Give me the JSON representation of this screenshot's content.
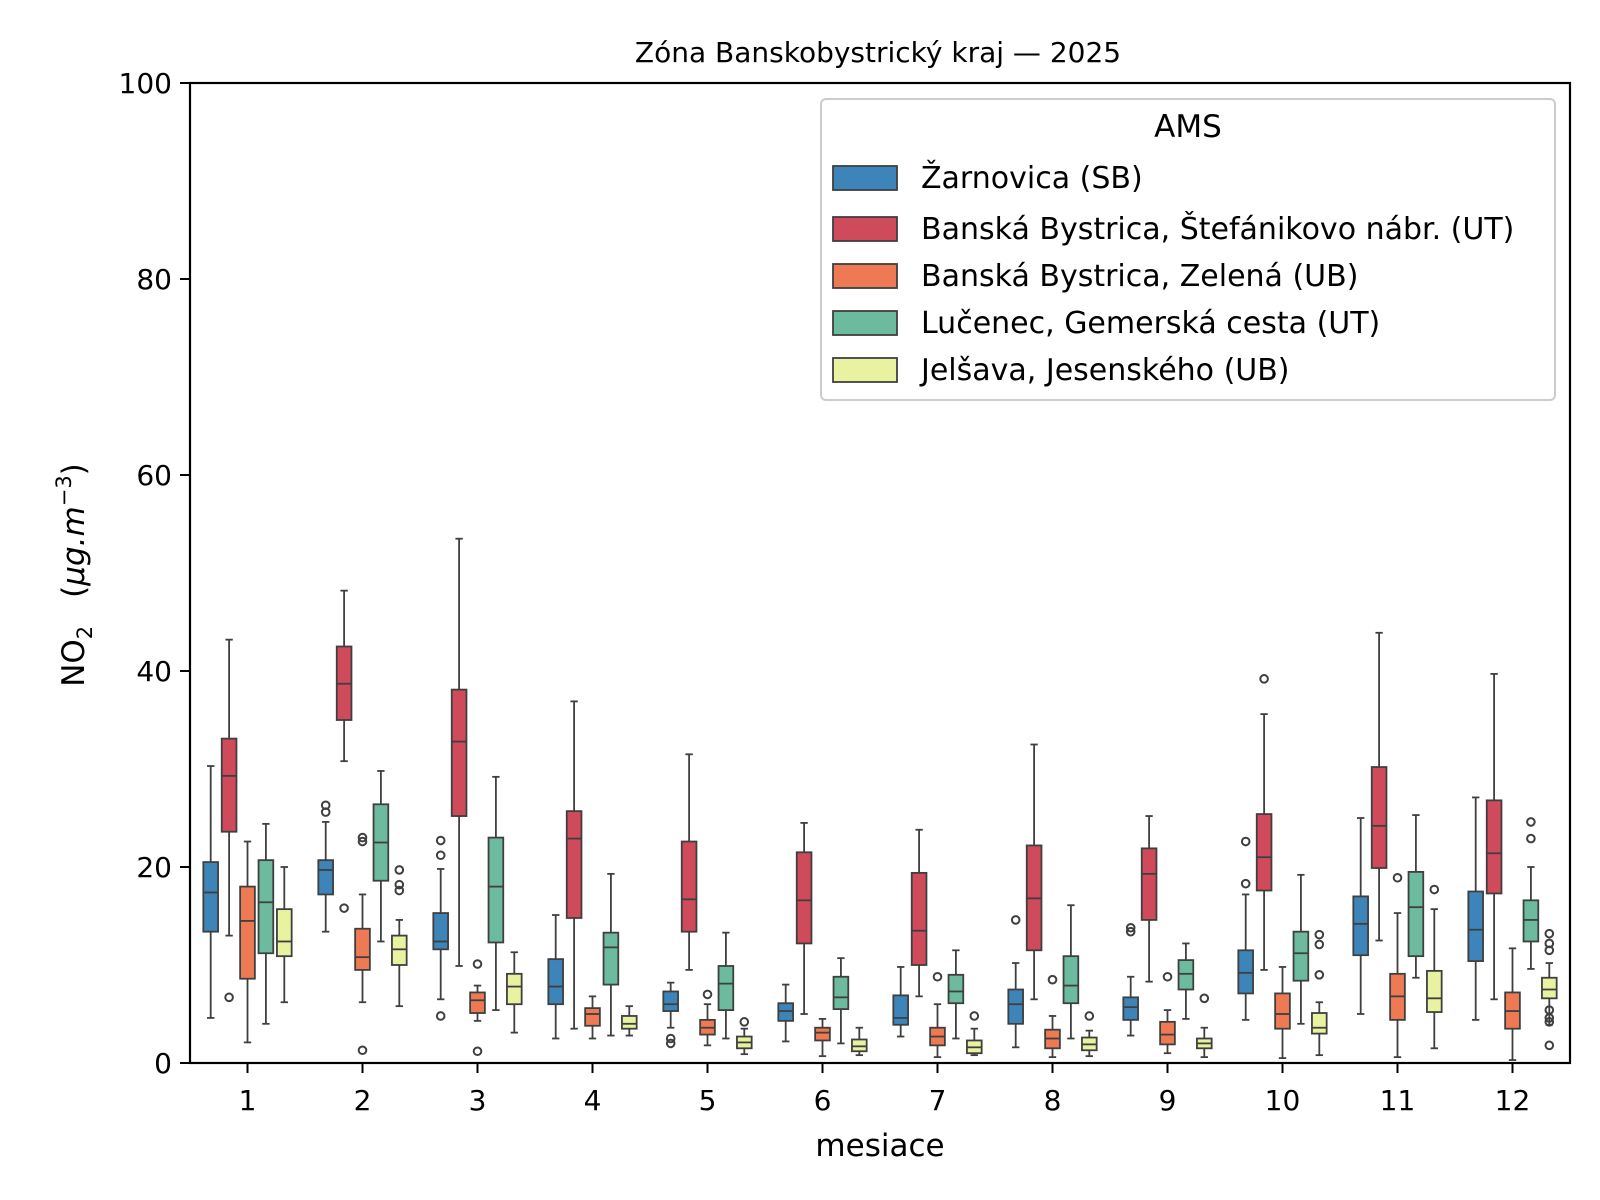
{
  "chart_data": {
    "type": "boxplot",
    "title": "Zóna Banskobystrický kraj —  2025",
    "xlabel": "mesiace",
    "ylabel_main": "NO",
    "ylabel_sub": "2",
    "ylabel_unit_open": "(",
    "ylabel_unit_mu": "μg.m",
    "ylabel_unit_exp": "−3",
    "ylabel_unit_close": ")",
    "ylim": [
      0,
      100
    ],
    "yticks": [
      "0",
      "20",
      "40",
      "60",
      "80",
      "100"
    ],
    "categories": [
      "1",
      "2",
      "3",
      "4",
      "5",
      "6",
      "7",
      "8",
      "9",
      "10",
      "11",
      "12"
    ],
    "legend": {
      "title": "AMS",
      "location": "top-right"
    },
    "series": [
      {
        "name": "Žarnovica (SB)",
        "color": "#3d85b8",
        "boxes": [
          {
            "wl": 4.6,
            "q1": 13.4,
            "med": 17.4,
            "q3": 20.5,
            "wh": 30.3,
            "fliers": []
          },
          {
            "wl": 13.4,
            "q1": 17.2,
            "med": 19.7,
            "q3": 20.7,
            "wh": 24.6,
            "fliers": [
              25.6,
              26.3
            ]
          },
          {
            "wl": 6.5,
            "q1": 11.6,
            "med": 12.4,
            "q3": 15.3,
            "wh": 19.8,
            "fliers": [
              4.8,
              21.2,
              22.7
            ]
          },
          {
            "wl": 2.5,
            "q1": 6.0,
            "med": 7.8,
            "q3": 10.6,
            "wh": 15.1,
            "fliers": []
          },
          {
            "wl": 3.6,
            "q1": 5.3,
            "med": 6.0,
            "q3": 7.3,
            "wh": 8.2,
            "fliers": [
              2.0,
              2.5
            ]
          },
          {
            "wl": 2.2,
            "q1": 4.3,
            "med": 5.3,
            "q3": 6.1,
            "wh": 8.0,
            "fliers": []
          },
          {
            "wl": 2.7,
            "q1": 3.9,
            "med": 4.6,
            "q3": 6.9,
            "wh": 9.8,
            "fliers": []
          },
          {
            "wl": 1.6,
            "q1": 4.0,
            "med": 6.0,
            "q3": 7.5,
            "wh": 10.2,
            "fliers": [
              14.6
            ]
          },
          {
            "wl": 2.8,
            "q1": 4.4,
            "med": 5.7,
            "q3": 6.7,
            "wh": 8.8,
            "fliers": [
              13.4,
              13.8
            ]
          },
          {
            "wl": 4.4,
            "q1": 7.1,
            "med": 9.2,
            "q3": 11.5,
            "wh": 17.2,
            "fliers": [
              18.3,
              22.6
            ]
          },
          {
            "wl": 5.0,
            "q1": 11.0,
            "med": 14.2,
            "q3": 17.0,
            "wh": 25.0,
            "fliers": []
          },
          {
            "wl": 4.4,
            "q1": 10.4,
            "med": 13.6,
            "q3": 17.5,
            "wh": 27.1,
            "fliers": []
          }
        ]
      },
      {
        "name": "Banská Bystrica, Štefánikovo nábr. (UT)",
        "color": "#cf4a5b",
        "boxes": [
          {
            "wl": 13.0,
            "q1": 23.6,
            "med": 29.3,
            "q3": 33.1,
            "wh": 43.2,
            "fliers": [
              6.7
            ]
          },
          {
            "wl": 30.8,
            "q1": 35.0,
            "med": 38.7,
            "q3": 42.5,
            "wh": 48.2,
            "fliers": [
              15.8
            ]
          },
          {
            "wl": 9.9,
            "q1": 25.2,
            "med": 32.8,
            "q3": 38.1,
            "wh": 53.5,
            "fliers": []
          },
          {
            "wl": 3.5,
            "q1": 14.8,
            "med": 22.9,
            "q3": 25.7,
            "wh": 36.9,
            "fliers": []
          },
          {
            "wl": 9.5,
            "q1": 13.4,
            "med": 16.7,
            "q3": 22.6,
            "wh": 31.5,
            "fliers": []
          },
          {
            "wl": 5.0,
            "q1": 12.2,
            "med": 16.6,
            "q3": 21.5,
            "wh": 24.5,
            "fliers": []
          },
          {
            "wl": 6.8,
            "q1": 10.0,
            "med": 13.5,
            "q3": 19.4,
            "wh": 23.8,
            "fliers": []
          },
          {
            "wl": 6.5,
            "q1": 11.5,
            "med": 16.8,
            "q3": 22.2,
            "wh": 32.5,
            "fliers": []
          },
          {
            "wl": 8.3,
            "q1": 14.6,
            "med": 19.3,
            "q3": 21.9,
            "wh": 25.2,
            "fliers": []
          },
          {
            "wl": 9.5,
            "q1": 17.6,
            "med": 21.0,
            "q3": 25.4,
            "wh": 35.6,
            "fliers": [
              39.2
            ]
          },
          {
            "wl": 12.5,
            "q1": 19.9,
            "med": 24.2,
            "q3": 30.2,
            "wh": 43.9,
            "fliers": []
          },
          {
            "wl": 6.5,
            "q1": 17.3,
            "med": 21.4,
            "q3": 26.8,
            "wh": 39.7,
            "fliers": []
          }
        ]
      },
      {
        "name": "Banská Bystrica, Zelená (UB)",
        "color": "#ee7a53",
        "boxes": [
          {
            "wl": 2.1,
            "q1": 8.6,
            "med": 14.5,
            "q3": 18.0,
            "wh": 22.6,
            "fliers": []
          },
          {
            "wl": 6.2,
            "q1": 9.5,
            "med": 10.8,
            "q3": 13.7,
            "wh": 17.2,
            "fliers": [
              1.3,
              22.6,
              23.0
            ]
          },
          {
            "wl": 4.3,
            "q1": 5.1,
            "med": 6.4,
            "q3": 7.2,
            "wh": 7.9,
            "fliers": [
              1.2,
              10.1
            ]
          },
          {
            "wl": 2.5,
            "q1": 3.8,
            "med": 5.0,
            "q3": 5.6,
            "wh": 6.8,
            "fliers": []
          },
          {
            "wl": 1.8,
            "q1": 2.9,
            "med": 3.6,
            "q3": 4.4,
            "wh": 6.0,
            "fliers": [
              7.0
            ]
          },
          {
            "wl": 0.7,
            "q1": 2.3,
            "med": 3.1,
            "q3": 3.6,
            "wh": 4.5,
            "fliers": []
          },
          {
            "wl": 0.6,
            "q1": 1.8,
            "med": 2.7,
            "q3": 3.6,
            "wh": 6.0,
            "fliers": [
              8.8
            ]
          },
          {
            "wl": 0.6,
            "q1": 1.5,
            "med": 2.5,
            "q3": 3.4,
            "wh": 4.8,
            "fliers": [
              8.5
            ]
          },
          {
            "wl": 1.0,
            "q1": 1.9,
            "med": 2.9,
            "q3": 4.2,
            "wh": 5.4,
            "fliers": [
              8.8
            ]
          },
          {
            "wl": 0.5,
            "q1": 3.5,
            "med": 5.0,
            "q3": 7.1,
            "wh": 9.8,
            "fliers": []
          },
          {
            "wl": 0.6,
            "q1": 4.4,
            "med": 6.8,
            "q3": 9.1,
            "wh": 15.3,
            "fliers": [
              18.9
            ]
          },
          {
            "wl": 0.3,
            "q1": 3.5,
            "med": 5.3,
            "q3": 7.2,
            "wh": 11.7,
            "fliers": []
          }
        ]
      },
      {
        "name": "Lučenec, Gemerská cesta (UT)",
        "color": "#6dbb9e",
        "boxes": [
          {
            "wl": 4.0,
            "q1": 11.2,
            "med": 16.4,
            "q3": 20.7,
            "wh": 24.4,
            "fliers": []
          },
          {
            "wl": 12.4,
            "q1": 18.6,
            "med": 22.5,
            "q3": 26.4,
            "wh": 29.8,
            "fliers": []
          },
          {
            "wl": 5.4,
            "q1": 12.3,
            "med": 18.0,
            "q3": 23.0,
            "wh": 29.2,
            "fliers": []
          },
          {
            "wl": 2.8,
            "q1": 8.0,
            "med": 11.8,
            "q3": 13.3,
            "wh": 19.3,
            "fliers": []
          },
          {
            "wl": 2.5,
            "q1": 5.4,
            "med": 8.1,
            "q3": 9.9,
            "wh": 13.3,
            "fliers": []
          },
          {
            "wl": 2.0,
            "q1": 5.5,
            "med": 6.7,
            "q3": 8.8,
            "wh": 10.7,
            "fliers": []
          },
          {
            "wl": 2.5,
            "q1": 6.1,
            "med": 7.3,
            "q3": 9.0,
            "wh": 11.5,
            "fliers": []
          },
          {
            "wl": 2.5,
            "q1": 6.1,
            "med": 7.9,
            "q3": 10.9,
            "wh": 16.1,
            "fliers": []
          },
          {
            "wl": 4.5,
            "q1": 7.5,
            "med": 9.1,
            "q3": 10.5,
            "wh": 12.2,
            "fliers": []
          },
          {
            "wl": 4.0,
            "q1": 8.4,
            "med": 11.2,
            "q3": 13.4,
            "wh": 19.2,
            "fliers": []
          },
          {
            "wl": 8.7,
            "q1": 10.9,
            "med": 15.9,
            "q3": 19.5,
            "wh": 25.3,
            "fliers": []
          },
          {
            "wl": 9.6,
            "q1": 12.4,
            "med": 14.6,
            "q3": 16.6,
            "wh": 20.0,
            "fliers": [
              22.9,
              24.6
            ]
          }
        ]
      },
      {
        "name": "Jelšava, Jesenského (UB)",
        "color": "#e8f2a0",
        "boxes": [
          {
            "wl": 6.2,
            "q1": 10.9,
            "med": 12.4,
            "q3": 15.7,
            "wh": 20.0,
            "fliers": []
          },
          {
            "wl": 5.8,
            "q1": 10.0,
            "med": 11.6,
            "q3": 13.0,
            "wh": 14.6,
            "fliers": [
              17.6,
              18.2,
              19.7
            ]
          },
          {
            "wl": 3.1,
            "q1": 6.0,
            "med": 7.8,
            "q3": 9.1,
            "wh": 11.3,
            "fliers": []
          },
          {
            "wl": 2.8,
            "q1": 3.5,
            "med": 4.0,
            "q3": 4.8,
            "wh": 5.8,
            "fliers": []
          },
          {
            "wl": 0.9,
            "q1": 1.5,
            "med": 2.1,
            "q3": 2.7,
            "wh": 3.5,
            "fliers": [
              4.2
            ]
          },
          {
            "wl": 0.8,
            "q1": 1.2,
            "med": 1.7,
            "q3": 2.4,
            "wh": 3.6,
            "fliers": []
          },
          {
            "wl": 0.8,
            "q1": 1.0,
            "med": 1.6,
            "q3": 2.3,
            "wh": 3.5,
            "fliers": [
              4.8
            ]
          },
          {
            "wl": 0.7,
            "q1": 1.3,
            "med": 1.9,
            "q3": 2.6,
            "wh": 3.3,
            "fliers": [
              4.8
            ]
          },
          {
            "wl": 0.6,
            "q1": 1.5,
            "med": 2.0,
            "q3": 2.5,
            "wh": 3.6,
            "fliers": [
              6.6
            ]
          },
          {
            "wl": 0.8,
            "q1": 3.0,
            "med": 3.6,
            "q3": 5.1,
            "wh": 6.2,
            "fliers": [
              9.0,
              12.1,
              13.1
            ]
          },
          {
            "wl": 1.5,
            "q1": 5.2,
            "med": 6.6,
            "q3": 9.4,
            "wh": 15.7,
            "fliers": [
              17.7
            ]
          },
          {
            "wl": 3.9,
            "q1": 6.6,
            "med": 7.5,
            "q3": 8.7,
            "wh": 10.2,
            "fliers": [
              1.8,
              4.2,
              4.6,
              5.4,
              11.5,
              12.2,
              13.2
            ]
          }
        ]
      }
    ]
  }
}
